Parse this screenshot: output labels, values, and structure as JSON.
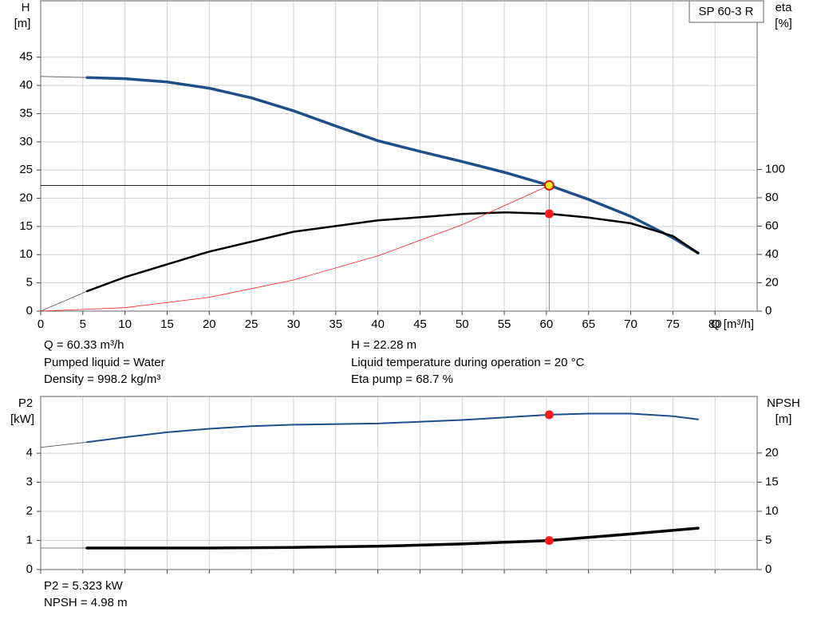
{
  "chart_data": [
    {
      "type": "line",
      "title": "SP 60-3 R",
      "xlabel": "Q [m³/h]",
      "ylabel": "H",
      "yunit": "[m]",
      "y2label": "eta",
      "y2unit": "[%]",
      "xlim": [
        0,
        85
      ],
      "xticks": [
        0,
        5,
        10,
        15,
        20,
        25,
        30,
        35,
        40,
        45,
        50,
        55,
        60,
        65,
        70,
        75,
        80
      ],
      "ylim": [
        0,
        55
      ],
      "yticks": [
        0,
        5,
        10,
        15,
        20,
        25,
        30,
        35,
        40,
        45
      ],
      "y2lim": [
        0,
        219
      ],
      "y2ticks": [
        0,
        20,
        40,
        60,
        80,
        100
      ],
      "grid": true,
      "series": [
        {
          "color": "#555555",
          "width": 0.8,
          "x": [
            0,
            5.5
          ],
          "values": [
            41.6,
            41.4
          ]
        },
        {
          "color": "#1f4e89",
          "width": 3.5,
          "x": [
            5.5,
            10,
            15,
            20,
            25,
            30,
            35,
            40,
            45,
            50,
            55,
            60.33,
            65,
            70,
            75,
            78
          ],
          "values": [
            41.4,
            41.2,
            40.6,
            39.5,
            37.8,
            35.5,
            32.8,
            30.2,
            28.3,
            26.5,
            24.6,
            22.28,
            19.8,
            16.8,
            13.0,
            10.3
          ]
        },
        {
          "color": "#555555",
          "width": 0.8,
          "axis": "y2",
          "x": [
            0,
            5.5
          ],
          "values": [
            0,
            14
          ]
        },
        {
          "color": "#000000",
          "width": 2.5,
          "axis": "y2",
          "x": [
            5.5,
            10,
            20,
            30,
            40,
            50,
            55,
            60.33,
            65,
            70,
            75,
            78
          ],
          "values": [
            14,
            24,
            42,
            56,
            64,
            68.5,
            69.7,
            68.7,
            66,
            62,
            53,
            41
          ]
        },
        {
          "color": "#ff2020",
          "width": 0.8,
          "x": [
            0,
            10,
            20,
            30,
            40,
            50,
            60.33
          ],
          "values": [
            0,
            0.61,
            2.45,
            5.51,
            9.79,
            15.3,
            22.28
          ]
        }
      ],
      "operating_point": {
        "x": 60.33,
        "y": 22.28,
        "y2": 68.7
      },
      "notes": [
        "Q = 60.33 m³/h",
        "Pumped liquid = Water",
        "Density = 998.2 kg/m³",
        "H = 22.28 m",
        "Liquid temperature during operation = 20 °C",
        "Eta pump = 68.7 %"
      ]
    },
    {
      "type": "line",
      "ylabel": "P2",
      "yunit": "[kW]",
      "y2label": "NPSH",
      "y2unit": "[m]",
      "xlim": [
        0,
        85
      ],
      "xticks": [
        0,
        5,
        10,
        15,
        20,
        25,
        30,
        35,
        40,
        45,
        50,
        55,
        60,
        65,
        70,
        75,
        80
      ],
      "ylim": [
        0,
        5.95
      ],
      "yticks": [
        0,
        1,
        2,
        3,
        4
      ],
      "y2lim": [
        0,
        29.7
      ],
      "y2ticks": [
        0,
        5,
        10,
        15,
        20
      ],
      "grid": true,
      "series": [
        {
          "color": "#555555",
          "width": 0.8,
          "x": [
            0,
            5.5
          ],
          "values": [
            4.2,
            4.38
          ]
        },
        {
          "color": "#1f4e89",
          "width": 2,
          "x": [
            5.5,
            10,
            15,
            20,
            25,
            30,
            40,
            50,
            60.33,
            65,
            70,
            75,
            78
          ],
          "values": [
            4.38,
            4.55,
            4.72,
            4.84,
            4.93,
            4.98,
            5.02,
            5.14,
            5.323,
            5.36,
            5.36,
            5.27,
            5.16
          ]
        },
        {
          "color": "#555555",
          "width": 0.8,
          "axis": "y2",
          "x": [
            0,
            5.5
          ],
          "values": [
            3.7,
            3.7
          ]
        },
        {
          "color": "#000000",
          "width": 3.5,
          "axis": "y2",
          "x": [
            5.5,
            20,
            30,
            40,
            50,
            60.33,
            70,
            78
          ],
          "values": [
            3.7,
            3.7,
            3.8,
            4.0,
            4.4,
            4.98,
            6.1,
            7.1
          ]
        }
      ],
      "operating_point": {
        "x": 60.33,
        "y": 5.323,
        "y2": 4.98
      },
      "notes": [
        "P2 = 5.323 kW",
        "NPSH = 4.98 m"
      ]
    }
  ]
}
